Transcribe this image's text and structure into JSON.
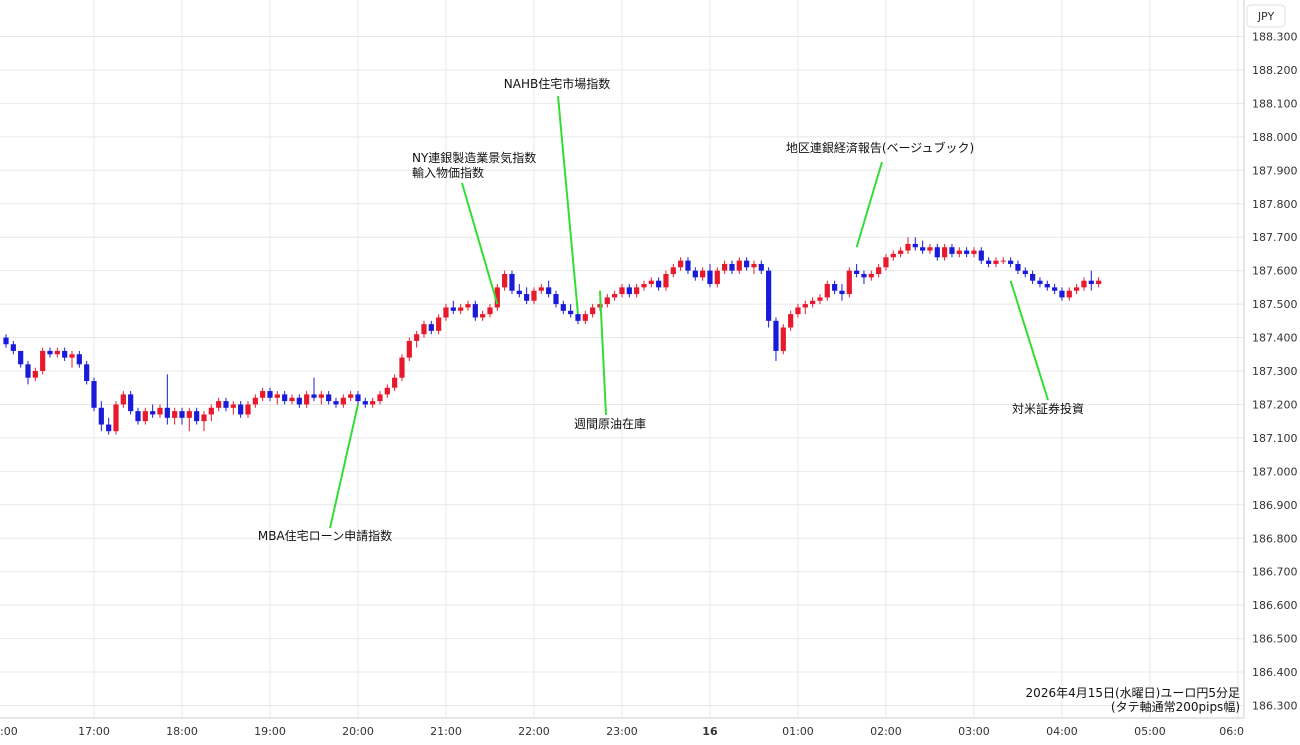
{
  "chart_data": {
    "type": "candlestick",
    "currency_label": "JPY",
    "caption_line1": "2026年4月15日(水曜日)ユーロ円5分足",
    "caption_line2": "(タテ軸通常200pips幅)",
    "ylim": [
      186.28,
      188.32
    ],
    "y_ticks": [
      "188.300",
      "188.200",
      "188.100",
      "188.000",
      "187.900",
      "187.800",
      "187.700",
      "187.600",
      "187.500",
      "187.400",
      "187.300",
      "187.200",
      "187.100",
      "187.000",
      "186.900",
      "186.800",
      "186.700",
      "186.600",
      "186.500",
      "186.400",
      "186.300"
    ],
    "x_ticks": [
      {
        "label": ":00",
        "t": -1
      },
      {
        "label": "17:00",
        "t": 12
      },
      {
        "label": "18:00",
        "t": 24
      },
      {
        "label": "19:00",
        "t": 36
      },
      {
        "label": "20:00",
        "t": 48
      },
      {
        "label": "21:00",
        "t": 60
      },
      {
        "label": "22:00",
        "t": 72
      },
      {
        "label": "23:00",
        "t": 84
      },
      {
        "label": "16",
        "t": 96
      },
      {
        "label": "01:00",
        "t": 108
      },
      {
        "label": "02:00",
        "t": 120
      },
      {
        "label": "03:00",
        "t": 132
      },
      {
        "label": "04:00",
        "t": 144
      },
      {
        "label": "05:00",
        "t": 156
      },
      {
        "label": "06:0",
        "t": 168
      }
    ],
    "candles": [
      [
        187.4,
        187.41,
        187.37,
        187.38
      ],
      [
        187.38,
        187.39,
        187.35,
        187.36
      ],
      [
        187.36,
        187.36,
        187.31,
        187.32
      ],
      [
        187.32,
        187.33,
        187.26,
        187.28
      ],
      [
        187.28,
        187.31,
        187.27,
        187.3
      ],
      [
        187.3,
        187.37,
        187.29,
        187.36
      ],
      [
        187.36,
        187.37,
        187.34,
        187.35
      ],
      [
        187.35,
        187.37,
        187.34,
        187.36
      ],
      [
        187.36,
        187.37,
        187.33,
        187.34
      ],
      [
        187.34,
        187.36,
        187.31,
        187.35
      ],
      [
        187.35,
        187.36,
        187.31,
        187.32
      ],
      [
        187.32,
        187.33,
        187.26,
        187.27
      ],
      [
        187.27,
        187.28,
        187.18,
        187.19
      ],
      [
        187.19,
        187.21,
        187.12,
        187.14
      ],
      [
        187.14,
        187.16,
        187.11,
        187.12
      ],
      [
        187.12,
        187.21,
        187.11,
        187.2
      ],
      [
        187.2,
        187.24,
        187.19,
        187.23
      ],
      [
        187.23,
        187.24,
        187.17,
        187.18
      ],
      [
        187.18,
        187.19,
        187.14,
        187.15
      ],
      [
        187.15,
        187.19,
        187.14,
        187.18
      ],
      [
        187.18,
        187.2,
        187.16,
        187.17
      ],
      [
        187.17,
        187.2,
        187.16,
        187.19
      ],
      [
        187.19,
        187.29,
        187.14,
        187.16
      ],
      [
        187.16,
        187.19,
        187.14,
        187.18
      ],
      [
        187.18,
        187.19,
        187.14,
        187.16
      ],
      [
        187.16,
        187.19,
        187.12,
        187.18
      ],
      [
        187.18,
        187.19,
        187.14,
        187.15
      ],
      [
        187.15,
        187.18,
        187.12,
        187.17
      ],
      [
        187.17,
        187.2,
        187.15,
        187.19
      ],
      [
        187.19,
        187.22,
        187.18,
        187.21
      ],
      [
        187.21,
        187.22,
        187.18,
        187.19
      ],
      [
        187.19,
        187.21,
        187.17,
        187.2
      ],
      [
        187.2,
        187.21,
        187.16,
        187.17
      ],
      [
        187.17,
        187.21,
        187.16,
        187.2
      ],
      [
        187.2,
        187.23,
        187.19,
        187.22
      ],
      [
        187.22,
        187.25,
        187.21,
        187.24
      ],
      [
        187.24,
        187.25,
        187.21,
        187.22
      ],
      [
        187.22,
        187.24,
        187.2,
        187.23
      ],
      [
        187.23,
        187.24,
        187.2,
        187.21
      ],
      [
        187.21,
        187.23,
        187.2,
        187.22
      ],
      [
        187.22,
        187.23,
        187.19,
        187.2
      ],
      [
        187.2,
        187.24,
        187.19,
        187.23
      ],
      [
        187.23,
        187.28,
        187.21,
        187.22
      ],
      [
        187.22,
        187.24,
        187.2,
        187.23
      ],
      [
        187.23,
        187.24,
        187.2,
        187.21
      ],
      [
        187.21,
        187.22,
        187.19,
        187.2
      ],
      [
        187.2,
        187.23,
        187.19,
        187.22
      ],
      [
        187.22,
        187.24,
        187.21,
        187.23
      ],
      [
        187.23,
        187.24,
        187.2,
        187.21
      ],
      [
        187.21,
        187.22,
        187.19,
        187.2
      ],
      [
        187.2,
        187.22,
        187.19,
        187.21
      ],
      [
        187.21,
        187.24,
        187.2,
        187.23
      ],
      [
        187.23,
        187.26,
        187.22,
        187.25
      ],
      [
        187.25,
        187.29,
        187.24,
        187.28
      ],
      [
        187.28,
        187.35,
        187.27,
        187.34
      ],
      [
        187.34,
        187.4,
        187.33,
        187.39
      ],
      [
        187.39,
        187.42,
        187.37,
        187.41
      ],
      [
        187.41,
        187.45,
        187.4,
        187.44
      ],
      [
        187.44,
        187.45,
        187.41,
        187.42
      ],
      [
        187.42,
        187.47,
        187.41,
        187.46
      ],
      [
        187.46,
        187.5,
        187.45,
        187.49
      ],
      [
        187.49,
        187.51,
        187.47,
        187.48
      ],
      [
        187.48,
        187.5,
        187.47,
        187.49
      ],
      [
        187.49,
        187.51,
        187.48,
        187.5
      ],
      [
        187.5,
        187.51,
        187.45,
        187.46
      ],
      [
        187.46,
        187.48,
        187.45,
        187.47
      ],
      [
        187.47,
        187.5,
        187.46,
        187.49
      ],
      [
        187.49,
        187.56,
        187.48,
        187.55
      ],
      [
        187.55,
        187.6,
        187.54,
        187.59
      ],
      [
        187.59,
        187.6,
        187.53,
        187.54
      ],
      [
        187.54,
        187.56,
        187.52,
        187.53
      ],
      [
        187.53,
        187.55,
        187.5,
        187.51
      ],
      [
        187.51,
        187.55,
        187.5,
        187.54
      ],
      [
        187.54,
        187.56,
        187.53,
        187.55
      ],
      [
        187.55,
        187.57,
        187.52,
        187.53
      ],
      [
        187.53,
        187.54,
        187.49,
        187.5
      ],
      [
        187.5,
        187.51,
        187.47,
        187.48
      ],
      [
        187.48,
        187.5,
        187.46,
        187.47
      ],
      [
        187.47,
        187.48,
        187.44,
        187.45
      ],
      [
        187.45,
        187.48,
        187.44,
        187.47
      ],
      [
        187.47,
        187.5,
        187.46,
        187.49
      ],
      [
        187.49,
        187.51,
        187.48,
        187.5
      ],
      [
        187.5,
        187.53,
        187.49,
        187.52
      ],
      [
        187.52,
        187.54,
        187.51,
        187.53
      ],
      [
        187.53,
        187.56,
        187.52,
        187.55
      ],
      [
        187.55,
        187.56,
        187.52,
        187.53
      ],
      [
        187.53,
        187.56,
        187.52,
        187.55
      ],
      [
        187.55,
        187.57,
        187.54,
        187.56
      ],
      [
        187.56,
        187.58,
        187.55,
        187.57
      ],
      [
        187.57,
        187.58,
        187.54,
        187.55
      ],
      [
        187.55,
        187.6,
        187.54,
        187.59
      ],
      [
        187.59,
        187.62,
        187.58,
        187.61
      ],
      [
        187.61,
        187.64,
        187.6,
        187.63
      ],
      [
        187.63,
        187.64,
        187.59,
        187.6
      ],
      [
        187.6,
        187.61,
        187.57,
        187.58
      ],
      [
        187.58,
        187.61,
        187.57,
        187.6
      ],
      [
        187.6,
        187.62,
        187.55,
        187.56
      ],
      [
        187.56,
        187.61,
        187.55,
        187.6
      ],
      [
        187.6,
        187.63,
        187.59,
        187.62
      ],
      [
        187.62,
        187.63,
        187.59,
        187.6
      ],
      [
        187.6,
        187.64,
        187.59,
        187.63
      ],
      [
        187.63,
        187.64,
        187.6,
        187.61
      ],
      [
        187.61,
        187.63,
        187.59,
        187.62
      ],
      [
        187.62,
        187.63,
        187.59,
        187.6
      ],
      [
        187.6,
        187.61,
        187.43,
        187.45
      ],
      [
        187.45,
        187.46,
        187.33,
        187.36
      ],
      [
        187.36,
        187.44,
        187.35,
        187.43
      ],
      [
        187.43,
        187.48,
        187.42,
        187.47
      ],
      [
        187.47,
        187.5,
        187.46,
        187.49
      ],
      [
        187.49,
        187.51,
        187.47,
        187.5
      ],
      [
        187.5,
        187.52,
        187.49,
        187.51
      ],
      [
        187.51,
        187.53,
        187.5,
        187.52
      ],
      [
        187.52,
        187.57,
        187.51,
        187.56
      ],
      [
        187.56,
        187.57,
        187.53,
        187.54
      ],
      [
        187.54,
        187.56,
        187.51,
        187.53
      ],
      [
        187.53,
        187.61,
        187.52,
        187.6
      ],
      [
        187.6,
        187.62,
        187.58,
        187.59
      ],
      [
        187.59,
        187.6,
        187.56,
        187.58
      ],
      [
        187.58,
        187.6,
        187.57,
        187.59
      ],
      [
        187.59,
        187.62,
        187.58,
        187.61
      ],
      [
        187.61,
        187.65,
        187.6,
        187.64
      ],
      [
        187.64,
        187.66,
        187.63,
        187.65
      ],
      [
        187.65,
        187.67,
        187.64,
        187.66
      ],
      [
        187.66,
        187.7,
        187.65,
        187.68
      ],
      [
        187.68,
        187.7,
        187.66,
        187.67
      ],
      [
        187.67,
        187.69,
        187.65,
        187.66
      ],
      [
        187.66,
        187.68,
        187.65,
        187.67
      ],
      [
        187.67,
        187.68,
        187.63,
        187.64
      ],
      [
        187.64,
        187.68,
        187.63,
        187.67
      ],
      [
        187.67,
        187.68,
        187.64,
        187.65
      ],
      [
        187.65,
        187.67,
        187.64,
        187.66
      ],
      [
        187.66,
        187.67,
        187.64,
        187.65
      ],
      [
        187.65,
        187.67,
        187.64,
        187.66
      ],
      [
        187.66,
        187.67,
        187.62,
        187.63
      ],
      [
        187.63,
        187.64,
        187.61,
        187.62
      ],
      [
        187.62,
        187.64,
        187.61,
        187.63
      ],
      [
        187.63,
        187.64,
        187.62,
        187.63
      ],
      [
        187.63,
        187.64,
        187.61,
        187.62
      ],
      [
        187.62,
        187.63,
        187.59,
        187.6
      ],
      [
        187.6,
        187.61,
        187.58,
        187.59
      ],
      [
        187.59,
        187.6,
        187.56,
        187.57
      ],
      [
        187.57,
        187.58,
        187.55,
        187.56
      ],
      [
        187.56,
        187.57,
        187.54,
        187.55
      ],
      [
        187.55,
        187.56,
        187.53,
        187.54
      ],
      [
        187.54,
        187.55,
        187.51,
        187.52
      ],
      [
        187.52,
        187.55,
        187.51,
        187.54
      ],
      [
        187.54,
        187.56,
        187.53,
        187.55
      ],
      [
        187.55,
        187.58,
        187.54,
        187.57
      ],
      [
        187.57,
        187.6,
        187.54,
        187.56
      ],
      [
        187.56,
        187.58,
        187.55,
        187.57
      ]
    ],
    "annotations": [
      {
        "id": "mba",
        "lines": [
          "MBA住宅ローン申請指数"
        ],
        "t": 48,
        "price": 187.2,
        "label_x": 325,
        "label_y": 540,
        "line_from": [
          330,
          528
        ]
      },
      {
        "id": "ny",
        "lines": [
          "NY連銀製造業景気指数",
          "輸入物価指数"
        ],
        "t": 67,
        "price": 187.5,
        "label_x": 412,
        "label_y": 162,
        "line_from": [
          462,
          183
        ]
      },
      {
        "id": "nahb",
        "lines": [
          "NAHB住宅市場指数"
        ],
        "t": 78,
        "price": 187.47,
        "label_x": 557,
        "label_y": 88,
        "line_from": [
          558,
          96
        ]
      },
      {
        "id": "eia",
        "lines": [
          "週間原油在庫"
        ],
        "t": 81,
        "price": 187.54,
        "label_x": 610,
        "label_y": 428,
        "line_from": [
          606,
          415
        ]
      },
      {
        "id": "beige",
        "lines": [
          "地区連銀経済報告(ベージュブック)"
        ],
        "t": 116,
        "price": 187.67,
        "label_x": 880,
        "label_y": 152,
        "line_from": [
          882,
          162
        ]
      },
      {
        "id": "tic",
        "lines": [
          "対米証券投資"
        ],
        "t": 137,
        "price": 187.57,
        "label_x": 1048,
        "label_y": 413,
        "line_from": [
          1048,
          400
        ]
      }
    ],
    "colors": {
      "up": "#e8192c",
      "down": "#1a1adb",
      "leader": "#33dd33",
      "grid": "#e8e8e8"
    }
  }
}
